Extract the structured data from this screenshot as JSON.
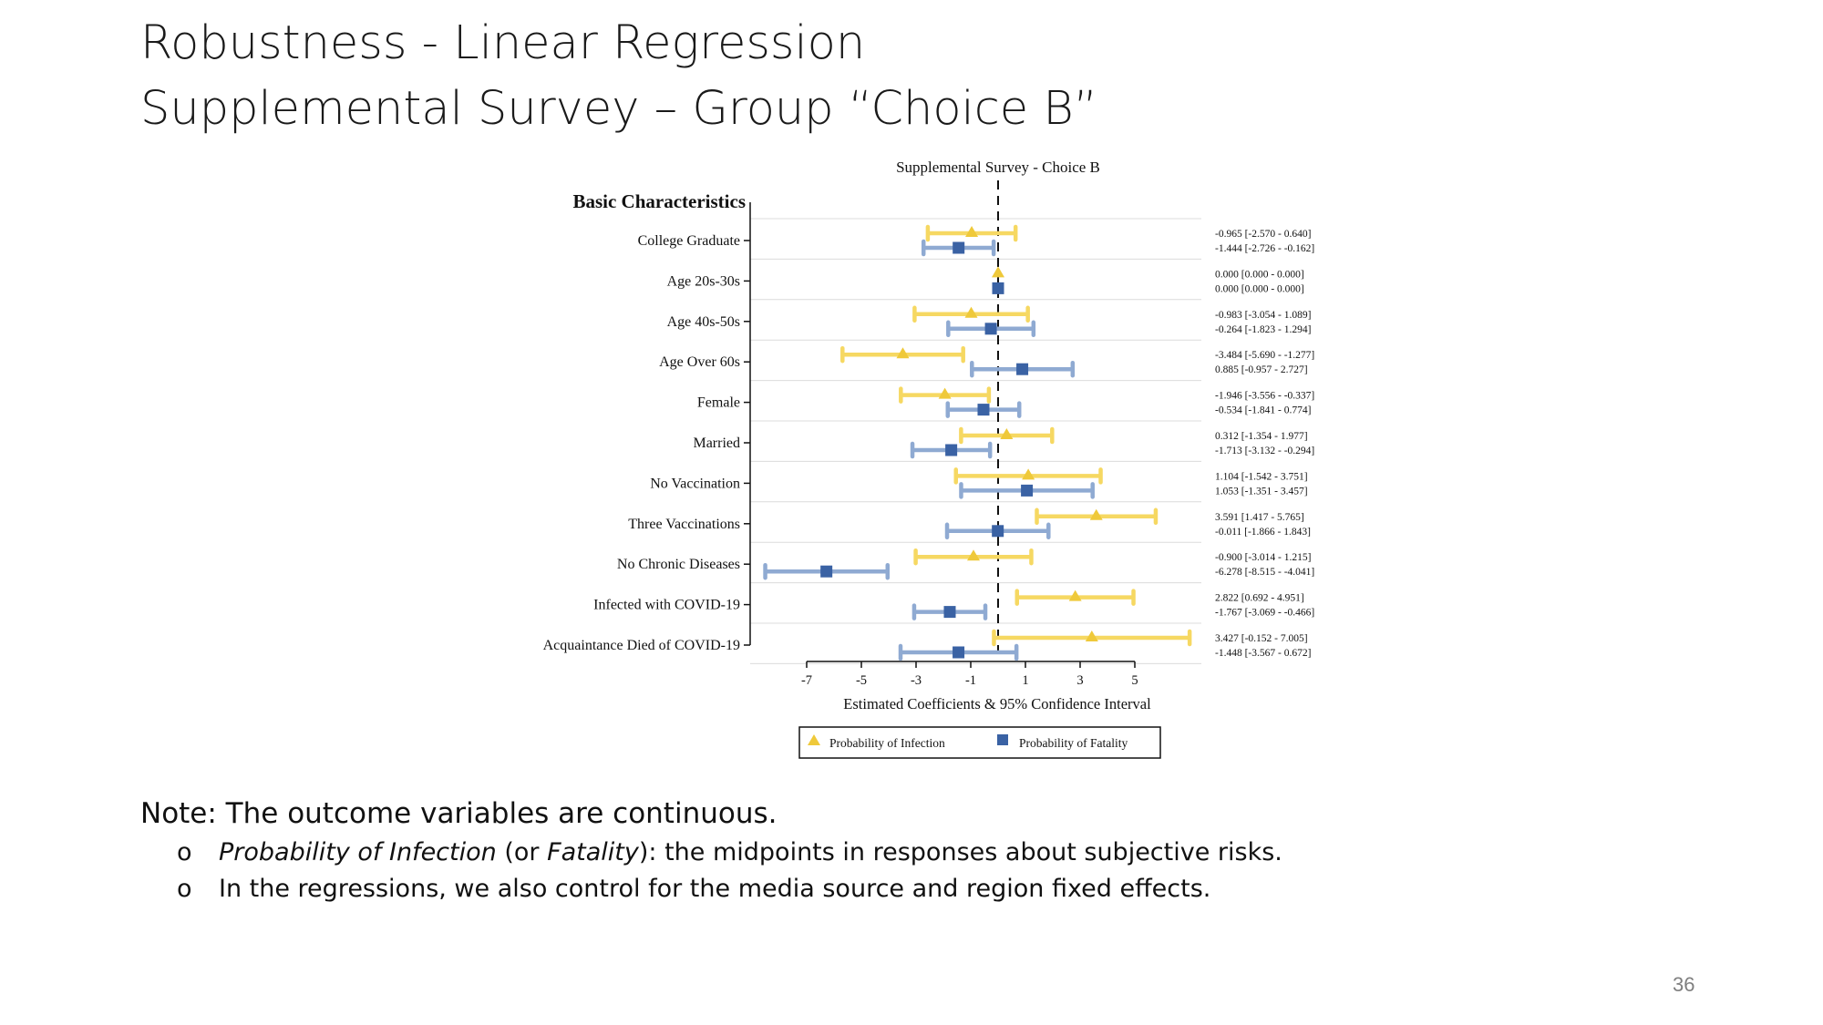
{
  "slide": {
    "title_line1": "Robustness - Linear Regression",
    "title_line2": "Supplemental Survey – Group “Choice B”",
    "note_heading": "Note: The outcome variables are continuous.",
    "bullet_marker": "o",
    "bullet1_italic1": "Probability of Infection",
    "bullet1_text1": " (or ",
    "bullet1_italic2": "Fatality",
    "bullet1_text2": "): the midpoints in responses about subjective risks.",
    "bullet2": "In the regressions, we also control for the media source and region fixed effects.",
    "page_number": "36"
  },
  "chart_data": {
    "type": "coefficient-plot",
    "title": "Supplemental Survey - Choice B",
    "ylabel": "Basic Characteristics",
    "xlabel": "Estimated Coefficients & 95% Confidence Interval",
    "xticks": [
      -7,
      -5,
      -3,
      -1,
      1,
      3,
      5
    ],
    "xlim": [
      -7,
      5
    ],
    "reference_line": 0,
    "legend_position": "bottom",
    "colors": {
      "infection_mark": "#efc93a",
      "infection_ci": "#f6d862",
      "fatality_mark": "#3a62a4",
      "fatality_ci": "#8faad2",
      "grid": "#dcdcdc"
    },
    "series": [
      {
        "name": "Probability of Infection",
        "marker": "triangle"
      },
      {
        "name": "Probability of Fatality",
        "marker": "square"
      }
    ],
    "rows": [
      {
        "label": "College Graduate",
        "infection": {
          "est": -0.965,
          "lo": -2.57,
          "hi": 0.64,
          "text": "-0.965  [-2.570 - 0.640]"
        },
        "fatality": {
          "est": -1.444,
          "lo": -2.726,
          "hi": -0.162,
          "text": "-1.444  [-2.726 - -0.162]"
        }
      },
      {
        "label": "Age 20s-30s",
        "infection": {
          "est": 0.0,
          "lo": 0.0,
          "hi": 0.0,
          "text": "0.000  [0.000 - 0.000]"
        },
        "fatality": {
          "est": 0.0,
          "lo": 0.0,
          "hi": 0.0,
          "text": "0.000  [0.000 - 0.000]"
        }
      },
      {
        "label": "Age 40s-50s",
        "infection": {
          "est": -0.983,
          "lo": -3.054,
          "hi": 1.089,
          "text": "-0.983  [-3.054 - 1.089]"
        },
        "fatality": {
          "est": -0.264,
          "lo": -1.823,
          "hi": 1.294,
          "text": "-0.264  [-1.823 - 1.294]"
        }
      },
      {
        "label": "Age Over 60s",
        "infection": {
          "est": -3.484,
          "lo": -5.69,
          "hi": -1.277,
          "text": "-3.484  [-5.690 - -1.277]"
        },
        "fatality": {
          "est": 0.885,
          "lo": -0.957,
          "hi": 2.727,
          "text": "0.885  [-0.957 - 2.727]"
        }
      },
      {
        "label": "Female",
        "infection": {
          "est": -1.946,
          "lo": -3.556,
          "hi": -0.337,
          "text": "-1.946  [-3.556 - -0.337]"
        },
        "fatality": {
          "est": -0.534,
          "lo": -1.841,
          "hi": 0.774,
          "text": "-0.534  [-1.841 - 0.774]"
        }
      },
      {
        "label": "Married",
        "infection": {
          "est": 0.312,
          "lo": -1.354,
          "hi": 1.977,
          "text": "0.312  [-1.354 - 1.977]"
        },
        "fatality": {
          "est": -1.713,
          "lo": -3.132,
          "hi": -0.294,
          "text": "-1.713  [-3.132 - -0.294]"
        }
      },
      {
        "label": "No Vaccination",
        "infection": {
          "est": 1.104,
          "lo": -1.542,
          "hi": 3.751,
          "text": "1.104  [-1.542 - 3.751]"
        },
        "fatality": {
          "est": 1.053,
          "lo": -1.351,
          "hi": 3.457,
          "text": "1.053  [-1.351 - 3.457]"
        }
      },
      {
        "label": "Three Vaccinations",
        "infection": {
          "est": 3.591,
          "lo": 1.417,
          "hi": 5.765,
          "text": "3.591  [1.417 - 5.765]"
        },
        "fatality": {
          "est": -0.011,
          "lo": -1.866,
          "hi": 1.843,
          "text": "-0.011  [-1.866 - 1.843]"
        }
      },
      {
        "label": "No Chronic Diseases",
        "infection": {
          "est": -0.9,
          "lo": -3.014,
          "hi": 1.215,
          "text": "-0.900  [-3.014 - 1.215]"
        },
        "fatality": {
          "est": -6.278,
          "lo": -8.515,
          "hi": -4.041,
          "text": "-6.278  [-8.515 - -4.041]"
        }
      },
      {
        "label": "Infected with COVID-19",
        "infection": {
          "est": 2.822,
          "lo": 0.692,
          "hi": 4.951,
          "text": "2.822  [0.692 - 4.951]"
        },
        "fatality": {
          "est": -1.767,
          "lo": -3.069,
          "hi": -0.466,
          "text": "-1.767  [-3.069 - -0.466]"
        }
      },
      {
        "label": "Acquaintance Died of COVID-19",
        "infection": {
          "est": 3.427,
          "lo": -0.152,
          "hi": 7.005,
          "text": "3.427  [-0.152 - 7.005]"
        },
        "fatality": {
          "est": -1.448,
          "lo": -3.567,
          "hi": 0.672,
          "text": "-1.448  [-3.567 - 0.672]"
        }
      }
    ]
  }
}
